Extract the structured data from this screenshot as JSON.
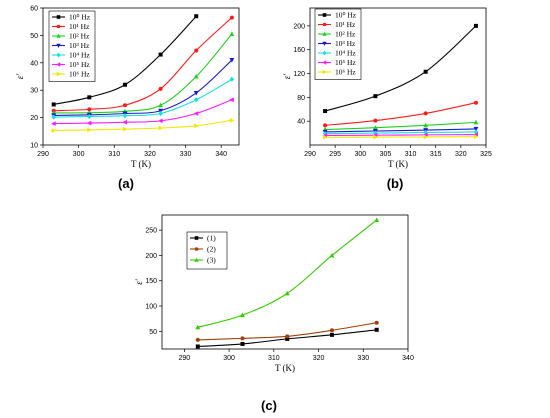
{
  "panels": [
    {
      "label": "(a)"
    },
    {
      "label": "(b)"
    },
    {
      "label": "(c)"
    }
  ],
  "chart_data": [
    {
      "type": "line",
      "xlabel": "T (K)",
      "ylabel": "ε'",
      "xlim": [
        290,
        345
      ],
      "ylim": [
        10,
        60
      ],
      "xticks": [
        290,
        300,
        310,
        320,
        330,
        340
      ],
      "yticks": [
        10,
        20,
        30,
        40,
        50,
        60
      ],
      "legend_position": "top-left",
      "series": [
        {
          "name": "10⁰ Hz",
          "color": "#000000",
          "marker": "square",
          "x": [
            293,
            303,
            313,
            323,
            333
          ],
          "y": [
            24.8,
            27.4,
            32,
            43,
            57
          ]
        },
        {
          "name": "10¹ Hz",
          "color": "#ff1a1a",
          "marker": "circle",
          "x": [
            293,
            303,
            313,
            323,
            333,
            343
          ],
          "y": [
            22.5,
            23,
            24.5,
            30.5,
            44.5,
            56.5
          ]
        },
        {
          "name": "10² Hz",
          "color": "#1fd11f",
          "marker": "triangle-up",
          "x": [
            293,
            303,
            313,
            323,
            333,
            343
          ],
          "y": [
            21.7,
            21.8,
            22.3,
            24.5,
            35,
            50.5
          ]
        },
        {
          "name": "10³ Hz",
          "color": "#1a1acc",
          "marker": "triangle-down",
          "x": [
            293,
            303,
            313,
            323,
            333,
            343
          ],
          "y": [
            20.8,
            21,
            21.5,
            22.5,
            29,
            41
          ]
        },
        {
          "name": "10⁴ Hz",
          "color": "#17e0e0",
          "marker": "diamond",
          "x": [
            293,
            303,
            313,
            323,
            333,
            343
          ],
          "y": [
            20.2,
            20.4,
            20.7,
            21.5,
            26.5,
            34
          ]
        },
        {
          "name": "10⁵ Hz",
          "color": "#ff1aff",
          "marker": "triangle-left",
          "x": [
            293,
            303,
            313,
            323,
            333,
            343
          ],
          "y": [
            17.8,
            18,
            18.3,
            18.8,
            21.5,
            26.5
          ]
        },
        {
          "name": "10⁶ Hz",
          "color": "#f2e600",
          "marker": "triangle-right",
          "x": [
            293,
            303,
            313,
            323,
            333,
            343
          ],
          "y": [
            15.3,
            15.5,
            15.8,
            16.2,
            17,
            19
          ]
        }
      ]
    },
    {
      "type": "line",
      "xlabel": "T (K)",
      "ylabel": "ε'",
      "xlim": [
        290,
        325
      ],
      "ylim": [
        0,
        230
      ],
      "xticks": [
        290,
        295,
        300,
        305,
        310,
        315,
        320,
        325
      ],
      "yticks": [
        40,
        80,
        120,
        160,
        200
      ],
      "legend_position": "top-left",
      "series": [
        {
          "name": "10⁰ Hz",
          "color": "#000000",
          "marker": "square",
          "x": [
            293,
            303,
            313,
            323
          ],
          "y": [
            57,
            82,
            123,
            200
          ]
        },
        {
          "name": "10¹ Hz",
          "color": "#ff1a1a",
          "marker": "circle",
          "x": [
            293,
            303,
            313,
            323
          ],
          "y": [
            33,
            41,
            53,
            71
          ]
        },
        {
          "name": "10² Hz",
          "color": "#1fd11f",
          "marker": "triangle-up",
          "x": [
            293,
            303,
            313,
            323
          ],
          "y": [
            26,
            29,
            33,
            38
          ]
        },
        {
          "name": "10³ Hz",
          "color": "#1a1acc",
          "marker": "triangle-down",
          "x": [
            293,
            303,
            313,
            323
          ],
          "y": [
            22,
            23.5,
            25,
            27
          ]
        },
        {
          "name": "10⁴ Hz",
          "color": "#17e0e0",
          "marker": "diamond",
          "x": [
            293,
            303,
            313,
            323
          ],
          "y": [
            19,
            20,
            21,
            22
          ]
        },
        {
          "name": "10⁵ Hz",
          "color": "#ff1aff",
          "marker": "triangle-left",
          "x": [
            293,
            303,
            313,
            323
          ],
          "y": [
            16,
            16.5,
            17,
            17.5
          ]
        },
        {
          "name": "10⁶ Hz",
          "color": "#f2e600",
          "marker": "triangle-right",
          "x": [
            293,
            303,
            313,
            323
          ],
          "y": [
            13,
            13.3,
            13.6,
            14
          ]
        }
      ]
    },
    {
      "type": "line",
      "xlabel": "T (K)",
      "ylabel": "ε'",
      "xlim": [
        285,
        340
      ],
      "ylim": [
        15,
        280
      ],
      "xticks": [
        290,
        300,
        310,
        320,
        330,
        340
      ],
      "yticks": [
        50,
        100,
        150,
        200,
        250
      ],
      "legend_position": "top-left",
      "series": [
        {
          "name": "(1)",
          "color": "#000000",
          "marker": "square",
          "x": [
            293,
            303,
            313,
            323,
            333
          ],
          "y": [
            20,
            25,
            35,
            43,
            53
          ]
        },
        {
          "name": "(2)",
          "color": "#a0400a",
          "marker": "circle",
          "x": [
            293,
            303,
            313,
            323,
            333
          ],
          "y": [
            33,
            36,
            40,
            52,
            67
          ]
        },
        {
          "name": "(3)",
          "color": "#33cc00",
          "marker": "triangle-up",
          "x": [
            293,
            303,
            313,
            323,
            333
          ],
          "y": [
            58,
            82,
            125,
            200,
            270
          ]
        }
      ]
    }
  ]
}
